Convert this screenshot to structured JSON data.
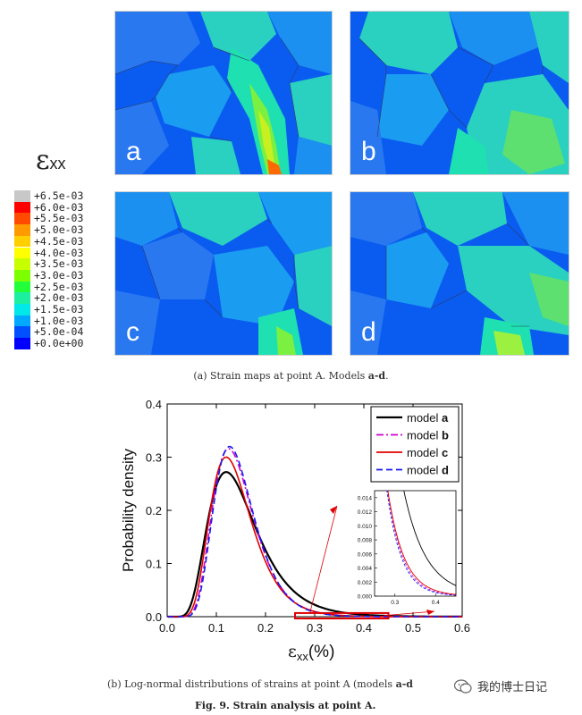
{
  "strain_maps": {
    "colorbar": {
      "symbol": "ε",
      "subscript": "xx",
      "entries": [
        {
          "label": "+6.5e-03",
          "color": "#c8c8c8"
        },
        {
          "label": "+6.0e-03",
          "color": "#ff0000"
        },
        {
          "label": "+5.5e-03",
          "color": "#ff4a00"
        },
        {
          "label": "+5.0e-03",
          "color": "#ff9a00"
        },
        {
          "label": "+4.5e-03",
          "color": "#ffcf00"
        },
        {
          "label": "+4.0e-03",
          "color": "#ffff00"
        },
        {
          "label": "+3.5e-03",
          "color": "#c8ff00"
        },
        {
          "label": "+3.0e-03",
          "color": "#7cff00"
        },
        {
          "label": "+2.5e-03",
          "color": "#22ff3a"
        },
        {
          "label": "+2.0e-03",
          "color": "#1cf0a0"
        },
        {
          "label": "+1.5e-03",
          "color": "#00e8e8"
        },
        {
          "label": "+1.0e-03",
          "color": "#00a8ff"
        },
        {
          "label": "+5.0e-04",
          "color": "#0050ff"
        },
        {
          "label": "+0.0e+00",
          "color": "#0000ff"
        }
      ]
    },
    "panels": [
      {
        "letter": "a"
      },
      {
        "letter": "b"
      },
      {
        "letter": "c"
      },
      {
        "letter": "d"
      }
    ],
    "caption_text": "(a) Strain maps at point A. Models ",
    "caption_bold": "a-d",
    "caption_tail": "."
  },
  "chart_data": {
    "type": "line",
    "title": "",
    "xlabel_symbol": "ε",
    "xlabel_sub": "xx",
    "xlabel_tail": "(%)",
    "ylabel": "Probability density",
    "xlim": [
      0.0,
      0.6
    ],
    "ylim": [
      0.0,
      0.4
    ],
    "xticks": [
      "0.0",
      "0.1",
      "0.2",
      "0.3",
      "0.4",
      "0.5",
      "0.6"
    ],
    "yticks": [
      "0.0",
      "0.1",
      "0.2",
      "0.3",
      "0.4"
    ],
    "series": [
      {
        "name": "model",
        "bold": "a",
        "color": "#000000",
        "dash": "",
        "mode": 0.12,
        "peak": 0.272,
        "sigma": 0.41
      },
      {
        "name": "model",
        "bold": "b",
        "color": "#cc00cc",
        "dash": "8,3,2,3",
        "mode": 0.125,
        "peak": 0.316,
        "sigma": 0.33
      },
      {
        "name": "model",
        "bold": "c",
        "color": "#e00000",
        "dash": "",
        "mode": 0.12,
        "peak": 0.3,
        "sigma": 0.35
      },
      {
        "name": "model",
        "bold": "d",
        "color": "#1a1aee",
        "dash": "7,4",
        "mode": 0.127,
        "peak": 0.32,
        "sigma": 0.32
      }
    ],
    "inset": {
      "xlim": [
        0.25,
        0.45
      ],
      "ylim": [
        0.0,
        0.015
      ],
      "xticks": [
        "0.3",
        "0.4"
      ],
      "yticks": [
        "0.000",
        "0.002",
        "0.004",
        "0.006",
        "0.008",
        "0.010",
        "0.012",
        "0.014"
      ]
    },
    "highlight": {
      "x_range": [
        0.26,
        0.45
      ],
      "y_range": [
        0.0,
        0.0035
      ]
    },
    "caption_text": "(b) Log-normal distributions of strains at point A (models ",
    "caption_bold": "a-d"
  },
  "figure_caption": "Fig. 9. Strain analysis at point A.",
  "watermark": "我的博士日记"
}
